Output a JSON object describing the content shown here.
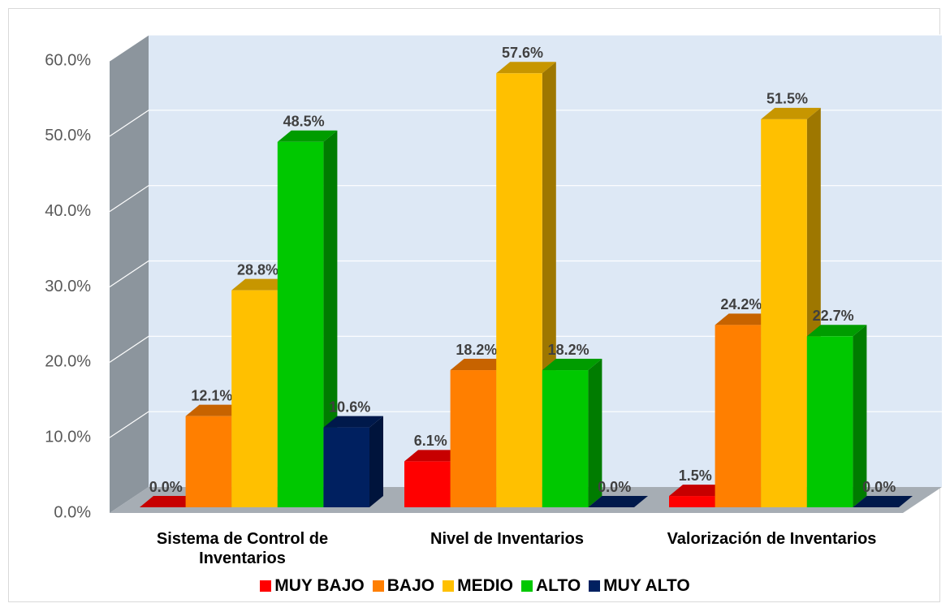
{
  "chart_data": {
    "type": "bar3d",
    "categories": [
      "Sistema de Control de Inventarios",
      "Nivel de Inventarios",
      "Valorización de Inventarios"
    ],
    "series": [
      {
        "name": "MUY BAJO",
        "color": "#ff0000",
        "values": [
          0,
          6.1,
          1.5
        ],
        "value_labels": [
          "0.0%",
          "6.1%",
          "1.5%"
        ]
      },
      {
        "name": "BAJO",
        "color": "#ff7f00",
        "values": [
          12.1,
          18.2,
          24.2
        ],
        "value_labels": [
          "12.1%",
          "18.2%",
          "24.2%"
        ]
      },
      {
        "name": "MEDIO",
        "color": "#ffc000",
        "values": [
          28.8,
          57.6,
          51.5
        ],
        "value_labels": [
          "28.8%",
          "57.6%",
          "51.5%"
        ]
      },
      {
        "name": "ALTO",
        "color": "#00c800",
        "values": [
          48.5,
          18.2,
          22.7
        ],
        "value_labels": [
          "48.5%",
          "18.2%",
          "22.7%"
        ]
      },
      {
        "name": "MUY ALTO",
        "color": "#002060",
        "values": [
          10.6,
          0,
          0
        ],
        "value_labels": [
          "10.6%",
          "0.0%",
          "0.0%"
        ]
      }
    ],
    "ylim": [
      0,
      60
    ],
    "yticks": [
      {
        "value": 0,
        "label": "0.0%"
      },
      {
        "value": 10,
        "label": "10.0%"
      },
      {
        "value": 20,
        "label": "20.0%"
      },
      {
        "value": 30,
        "label": "30.0%"
      },
      {
        "value": 40,
        "label": "40.0%"
      },
      {
        "value": 50,
        "label": "50.0%"
      },
      {
        "value": 60,
        "label": "60.0%"
      }
    ],
    "grid": true,
    "legend": "bottom"
  }
}
